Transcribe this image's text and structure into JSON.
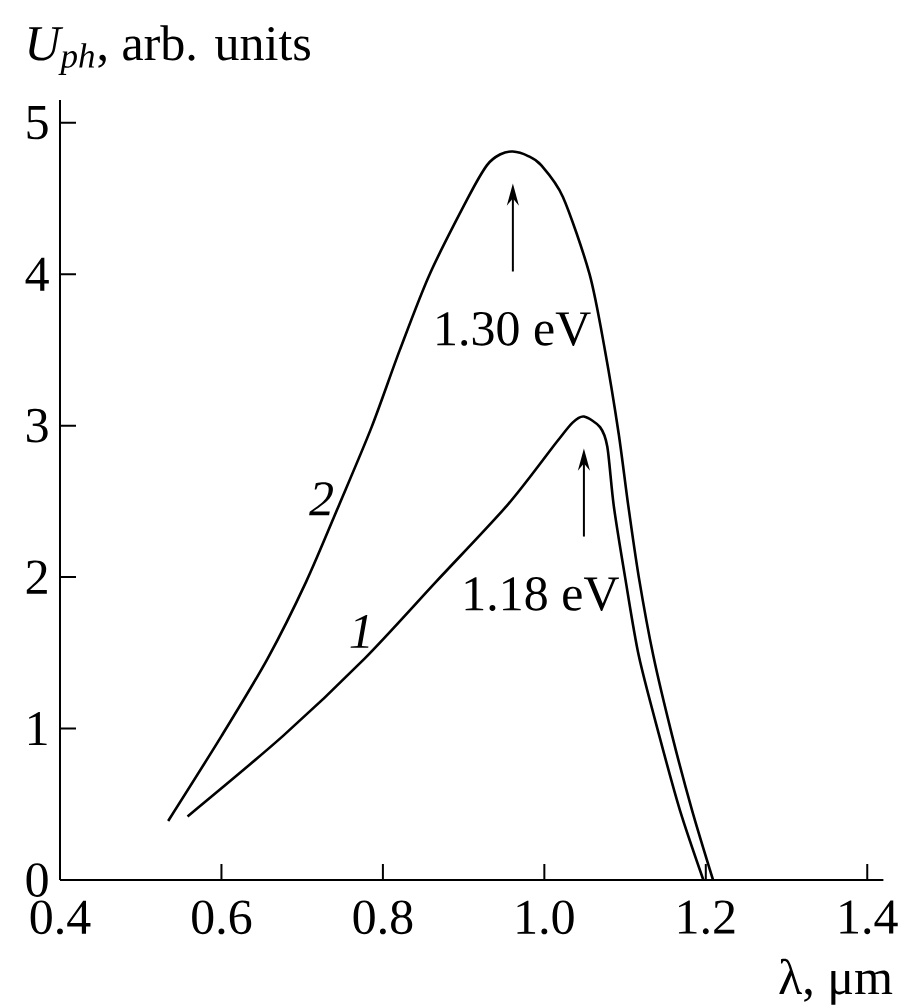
{
  "chart_data": {
    "type": "line",
    "xlabel": "λ, μm",
    "ylabel": "*U$_{ph}$*, arb. units",
    "xlim": [
      0.4,
      1.42
    ],
    "ylim": [
      0,
      5.15
    ],
    "xticks": [
      0.4,
      0.6,
      0.8,
      {
        "value": 1,
        "label": "1.0"
      },
      1.2,
      1.4
    ],
    "yticks": [
      0,
      1,
      2,
      3,
      4,
      5
    ],
    "marker": "none",
    "line_style": "solid",
    "series": [
      {
        "name": "1",
        "color": "#000000",
        "x": [
          0.558,
          0.676,
          0.777,
          0.866,
          0.955,
          1.015,
          1.035,
          1.049,
          1.069,
          1.078,
          1.086,
          1.1,
          1.117,
          1.142,
          1.168,
          1.197
        ],
        "values": [
          0.42,
          0.95,
          1.46,
          1.97,
          2.48,
          2.89,
          3.02,
          3.06,
          2.99,
          2.86,
          2.47,
          2.0,
          1.48,
          0.96,
          0.46,
          0
        ]
      },
      {
        "name": "2",
        "color": "#000000",
        "x": [
          0.534,
          0.6,
          0.657,
          0.705,
          0.746,
          0.786,
          0.821,
          0.858,
          0.906,
          0.929,
          0.945,
          0.961,
          0.98,
          0.996,
          1.023,
          1.056,
          1.075,
          1.092,
          1.104,
          1.117,
          1.135,
          1.158,
          1.183,
          1.209
        ],
        "values": [
          0.39,
          0.95,
          1.46,
          1.97,
          2.48,
          2.99,
          3.5,
          4.0,
          4.51,
          4.72,
          4.79,
          4.81,
          4.78,
          4.72,
          4.51,
          4.0,
          3.5,
          2.95,
          2.47,
          2.0,
          1.48,
          0.96,
          0.46,
          0
        ]
      }
    ],
    "annotations": [
      "1.30 eV",
      "1.18 eV"
    ]
  }
}
